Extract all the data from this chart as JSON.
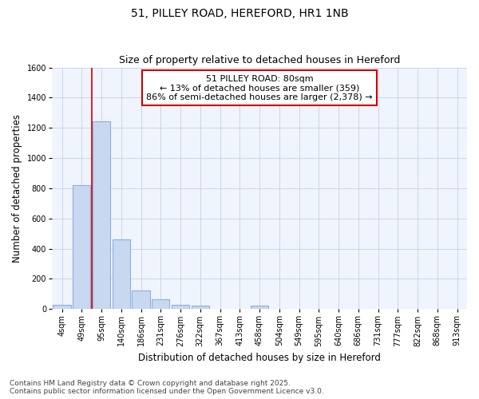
{
  "title_line1": "51, PILLEY ROAD, HEREFORD, HR1 1NB",
  "title_line2": "Size of property relative to detached houses in Hereford",
  "xlabel": "Distribution of detached houses by size in Hereford",
  "ylabel": "Number of detached properties",
  "categories": [
    "4sqm",
    "49sqm",
    "95sqm",
    "140sqm",
    "186sqm",
    "231sqm",
    "276sqm",
    "322sqm",
    "367sqm",
    "413sqm",
    "458sqm",
    "504sqm",
    "549sqm",
    "595sqm",
    "640sqm",
    "686sqm",
    "731sqm",
    "777sqm",
    "822sqm",
    "868sqm",
    "913sqm"
  ],
  "values": [
    25,
    820,
    1245,
    460,
    125,
    65,
    25,
    20,
    0,
    0,
    20,
    0,
    0,
    0,
    0,
    0,
    0,
    0,
    0,
    0,
    0
  ],
  "bar_color": "#c8d8f0",
  "bar_edge_color": "#8ab0de",
  "vline_color": "#cc0000",
  "vline_x": 1.5,
  "annotation_text": "51 PILLEY ROAD: 80sqm\n← 13% of detached houses are smaller (359)\n86% of semi-detached houses are larger (2,378) →",
  "annotation_box_facecolor": "#ffffff",
  "annotation_box_edgecolor": "#cc0000",
  "ylim": [
    0,
    1600
  ],
  "yticks": [
    0,
    200,
    400,
    600,
    800,
    1000,
    1200,
    1400,
    1600
  ],
  "grid_color": "#c8d0e8",
  "plot_bg_color": "#f0f4fc",
  "fig_bg_color": "#ffffff",
  "footer_line1": "Contains HM Land Registry data © Crown copyright and database right 2025.",
  "footer_line2": "Contains public sector information licensed under the Open Government Licence v3.0.",
  "title_fontsize": 10,
  "subtitle_fontsize": 9,
  "axis_label_fontsize": 8.5,
  "tick_fontsize": 7,
  "annotation_fontsize": 8,
  "footer_fontsize": 6.5
}
